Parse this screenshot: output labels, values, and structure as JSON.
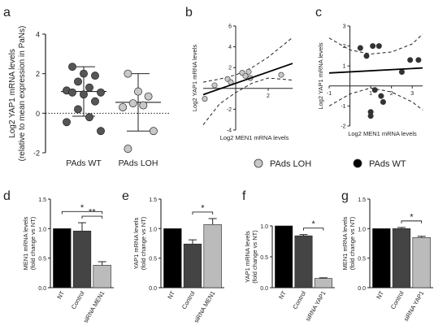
{
  "figure": {
    "legend": {
      "items": [
        {
          "label": "PAds LOH",
          "color": "#c8c8c8"
        },
        {
          "label": "PAds WT",
          "color": "#000000"
        }
      ]
    }
  },
  "chart_data": [
    {
      "id": "a",
      "panel": "a",
      "type": "scatter",
      "ylabel_line1": "Log2 YAP1 mRNA levels",
      "ylabel_line2": "(relative to mean expression in PaNs)",
      "yticks": [
        -2,
        0,
        2,
        4
      ],
      "ylim": [
        -2,
        4
      ],
      "categories": [
        "PAds WT",
        "PAds LOH"
      ],
      "series": [
        {
          "name": "PAds WT",
          "values": [
            2.35,
            2.0,
            1.9,
            1.6,
            1.3,
            1.15,
            1.05,
            1.05,
            0.95,
            0.6,
            0.2,
            -0.2,
            -0.45,
            -0.9
          ],
          "mean": 1.1,
          "sd_upper": 2.35,
          "sd_lower": -0.15,
          "color": "#555555"
        },
        {
          "name": "PAds LOH",
          "values": [
            2.0,
            1.1,
            0.85,
            0.5,
            0.4,
            0.3,
            -0.9,
            -1.8
          ],
          "mean": 0.55,
          "sd_upper": 2.0,
          "sd_lower": -0.9,
          "color": "#c8c8c8"
        }
      ]
    },
    {
      "id": "b",
      "panel": "b",
      "type": "scatter",
      "xlabel": "Log2 MEN1 mRNA levels",
      "ylabel": "Log2 YAP1 mRNA levels",
      "xlim": [
        -2,
        3.5
      ],
      "ylim": [
        -4,
        6
      ],
      "xticks": [
        2
      ],
      "yticks": [
        -4,
        -2,
        2,
        4,
        6
      ],
      "points": [
        {
          "x": -1.9,
          "y": -1.0
        },
        {
          "x": -1.3,
          "y": 0.3
        },
        {
          "x": -0.5,
          "y": 0.9
        },
        {
          "x": -0.3,
          "y": 0.6
        },
        {
          "x": 0.4,
          "y": 1.5
        },
        {
          "x": 0.6,
          "y": 1.2
        },
        {
          "x": 0.8,
          "y": 1.6
        },
        {
          "x": 0.9,
          "y": 1.0
        },
        {
          "x": 2.8,
          "y": 1.3
        }
      ],
      "point_color": "#c8c8c8",
      "regression": {
        "x0": -2,
        "y0": -0.6,
        "x1": 3.5,
        "y1": 2.4
      },
      "ci_upper": [
        [
          -2,
          0.6
        ],
        [
          -1,
          0.9
        ],
        [
          0,
          1.3
        ],
        [
          1,
          2.0
        ],
        [
          2,
          3.0
        ],
        [
          3.5,
          4.9
        ]
      ],
      "ci_lower": [
        [
          -2,
          -3.5
        ],
        [
          -1,
          -1.5
        ],
        [
          0,
          -0.4
        ],
        [
          1,
          0.5
        ],
        [
          2,
          1.0
        ],
        [
          3.5,
          0.8
        ]
      ]
    },
    {
      "id": "c",
      "panel": "c",
      "type": "scatter",
      "xlabel": "Log2 MEN1 mRNA levels",
      "ylabel": "Log2 YAP1 mRNA levels",
      "xlim": [
        -1,
        3.5
      ],
      "ylim": [
        -2,
        3
      ],
      "xticks": [
        -1,
        1,
        2,
        3
      ],
      "yticks": [
        -2,
        -1,
        1,
        2,
        3
      ],
      "points": [
        {
          "x": 0.5,
          "y": 1.9
        },
        {
          "x": 0.8,
          "y": 1.5
        },
        {
          "x": 1.1,
          "y": 2.0
        },
        {
          "x": 1.4,
          "y": 2.0
        },
        {
          "x": 1.2,
          "y": -0.2
        },
        {
          "x": 1.5,
          "y": -0.5
        },
        {
          "x": 1.6,
          "y": -0.8
        },
        {
          "x": 2.5,
          "y": 0.7
        },
        {
          "x": 2.9,
          "y": 1.3
        },
        {
          "x": 3.3,
          "y": 1.3
        },
        {
          "x": 1.0,
          "y": -1.5
        },
        {
          "x": 1.0,
          "y": -1.3
        }
      ],
      "point_color": "#333333",
      "regression": {
        "x0": -1,
        "y0": 0.65,
        "x1": 3.5,
        "y1": 0.9
      },
      "ci_upper": [
        [
          -1,
          2.4
        ],
        [
          0,
          1.8
        ],
        [
          1,
          1.6
        ],
        [
          2,
          1.7
        ],
        [
          3,
          2.1
        ],
        [
          3.5,
          2.6
        ]
      ],
      "ci_lower": [
        [
          -1,
          -1.0
        ],
        [
          0,
          -0.4
        ],
        [
          1,
          -0.1
        ],
        [
          2,
          -0.3
        ],
        [
          3,
          -0.8
        ],
        [
          3.5,
          -1.2
        ]
      ]
    },
    {
      "id": "d",
      "panel": "d",
      "type": "bar",
      "ylabel_line1": "MEN1 mRNA levels",
      "ylabel_line2": "(fold change vs NT)",
      "ylim": [
        0,
        1.5
      ],
      "yticks": [
        0.0,
        0.5,
        1.0,
        1.5
      ],
      "categories": [
        "NT",
        "Control",
        "siRNA MEN1"
      ],
      "values": [
        1.0,
        0.96,
        0.38
      ],
      "errors": [
        0.0,
        0.14,
        0.06
      ],
      "colors": [
        "#000000",
        "#444444",
        "#bbbbbb"
      ],
      "significance": [
        {
          "from": 0,
          "to": 2,
          "label": "*"
        },
        {
          "from": 1,
          "to": 2,
          "label": "**"
        }
      ]
    },
    {
      "id": "e",
      "panel": "e",
      "type": "bar",
      "ylabel_line1": "YAP1 mRNA levels",
      "ylabel_line2": "(fold change vs NT)",
      "ylim": [
        0,
        1.5
      ],
      "yticks": [
        0.0,
        0.5,
        1.0,
        1.5
      ],
      "categories": [
        "NT",
        "Control",
        "siRNA MEN1"
      ],
      "values": [
        1.0,
        0.74,
        1.07
      ],
      "errors": [
        0.0,
        0.07,
        0.1
      ],
      "colors": [
        "#000000",
        "#444444",
        "#bbbbbb"
      ],
      "significance": [
        {
          "from": 1,
          "to": 2,
          "label": "*"
        }
      ]
    },
    {
      "id": "f",
      "panel": "f",
      "type": "bar",
      "ylabel_line1": "YAP1 mRNA levels",
      "ylabel_line2": "(fold change vs NT)",
      "ylim": [
        0,
        1.0
      ],
      "yticks": [
        0.0,
        0.5,
        1.0
      ],
      "categories": [
        "NT",
        "Control",
        "siRNA YAP1"
      ],
      "values": [
        1.0,
        0.84,
        0.15
      ],
      "errors": [
        0.0,
        0.02,
        0.01
      ],
      "colors": [
        "#000000",
        "#444444",
        "#bbbbbb"
      ],
      "significance": [
        {
          "from": 1,
          "to": 2,
          "label": "*"
        }
      ]
    },
    {
      "id": "g",
      "panel": "g",
      "type": "bar",
      "ylabel_line1": "MEN1 mRNA levels",
      "ylabel_line2": "(fold change vs NT)",
      "ylim": [
        0,
        1.5
      ],
      "yticks": [
        0.0,
        0.5,
        1.0,
        1.5
      ],
      "categories": [
        "NT",
        "Control",
        "siRNA YAP1"
      ],
      "values": [
        1.0,
        1.0,
        0.85
      ],
      "errors": [
        0.0,
        0.02,
        0.02
      ],
      "colors": [
        "#000000",
        "#444444",
        "#bbbbbb"
      ],
      "significance": [
        {
          "from": 1,
          "to": 2,
          "label": "*"
        }
      ]
    }
  ]
}
